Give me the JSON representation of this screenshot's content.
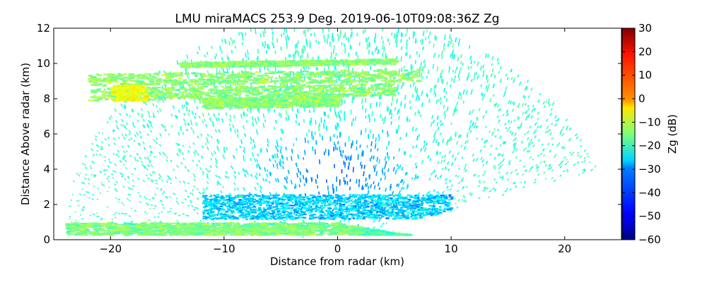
{
  "chart_data": {
    "type": "heatmap",
    "title": "LMU miraMACS 253.9 Deg. 2019-06-10T09:08:36Z  Zg",
    "xlabel": "Distance from radar (km)",
    "ylabel": "Distance Above radar  (km)",
    "xlim": [
      -25,
      25
    ],
    "ylim": [
      0,
      12
    ],
    "x_ticks": [
      -20,
      -10,
      0,
      10,
      20
    ],
    "x_tick_labels": [
      "−20",
      "−10",
      "0",
      "10",
      "20"
    ],
    "y_ticks": [
      0,
      2,
      4,
      6,
      8,
      10,
      12
    ],
    "y_tick_labels": [
      "0",
      "2",
      "4",
      "6",
      "8",
      "10",
      "12"
    ],
    "grid": false,
    "colorbar": {
      "label": "Zg (dB)",
      "colormap": "jet",
      "vmin": -60,
      "vmax": 30,
      "ticks": [
        30,
        20,
        10,
        0,
        -10,
        -20,
        -30,
        -40,
        -50,
        -60
      ],
      "tick_labels": [
        "30",
        "20",
        "10",
        "0",
        "−10",
        "−20",
        "−30",
        "−40",
        "−50",
        "−60"
      ]
    },
    "features": [
      {
        "name": "surface clutter layer",
        "x": [
          -24,
          6
        ],
        "z": [
          0.3,
          1.0
        ],
        "zg": -15
      },
      {
        "name": "boundary layer",
        "x": [
          -12,
          10
        ],
        "z": [
          1.2,
          2.6
        ],
        "zg": -30
      },
      {
        "name": "upper cloud layer",
        "x": [
          -22,
          7
        ],
        "z": [
          7.8,
          10.4
        ],
        "zg": -14
      },
      {
        "name": "cloud core",
        "x": [
          -20,
          -17
        ],
        "z": [
          7.9,
          8.8
        ],
        "zg": -5
      }
    ]
  }
}
